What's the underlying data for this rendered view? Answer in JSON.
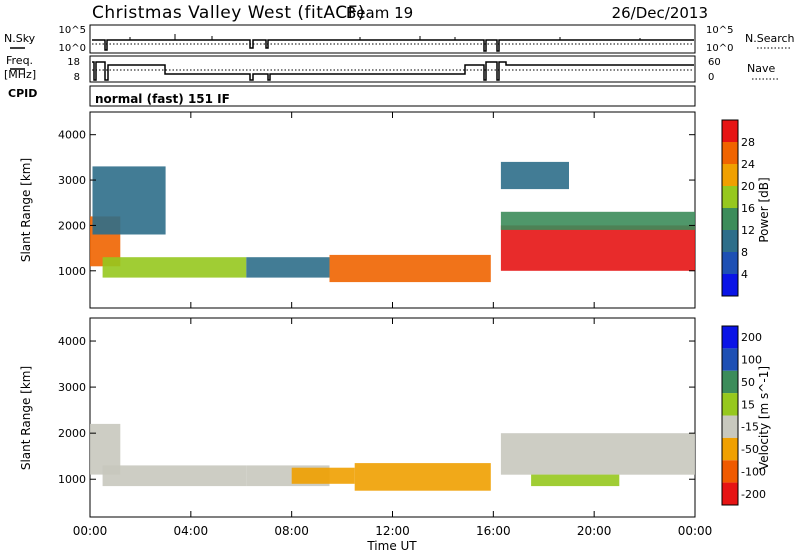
{
  "header": {
    "title": "Christmas Valley West (fitACF)",
    "beam": "Beam 19",
    "date": "26/Dec/2013"
  },
  "noise_panel": {
    "left_label": "N.Sky",
    "right_label": "N.Search",
    "left_ticks": [
      "10^5",
      "10^0"
    ],
    "right_ticks": [
      "10^5",
      "10^0"
    ]
  },
  "freq_panel": {
    "left_label_line1": "Freq.",
    "left_label_line2": "[MHz]",
    "right_label": "Nave",
    "left_ticks": [
      "18",
      "8"
    ],
    "right_ticks": [
      "60",
      "0"
    ]
  },
  "cpid": {
    "label": "CPID",
    "value": "normal (fast) 151 IF"
  },
  "x_axis": {
    "label": "Time UT",
    "ticks": [
      "00:00",
      "04:00",
      "08:00",
      "12:00",
      "16:00",
      "20:00",
      "00:00"
    ]
  },
  "colors": {
    "power": [
      "#0a14e6",
      "#1e50b4",
      "#2e6e8a",
      "#3c8c5a",
      "#96c81e",
      "#f0a000",
      "#f06400",
      "#e61414"
    ],
    "velocity": [
      "#e61414",
      "#f05a00",
      "#f0a000",
      "#c8c8be",
      "#96c81e",
      "#3c8c5a",
      "#1e50b4",
      "#0a14e6"
    ]
  },
  "chart_data": [
    {
      "type": "heatmap",
      "title": "",
      "ylabel": "Slant Range [km]",
      "xlabel": "",
      "xlim": [
        "00:00",
        "24:00"
      ],
      "ylim": [
        180,
        4500
      ],
      "yticks": [
        "1000",
        "2000",
        "3000",
        "4000"
      ],
      "colorbar": {
        "label": "Power [dB]",
        "ticks": [
          "4",
          "8",
          "12",
          "16",
          "20",
          "24",
          "28"
        ]
      },
      "regions": [
        {
          "t0": 0.0,
          "t1": 1.2,
          "r0": 1100,
          "r1": 2200,
          "level": 0.85
        },
        {
          "t0": 0.1,
          "t1": 3.0,
          "r0": 1800,
          "r1": 3300,
          "level": 0.3
        },
        {
          "t0": 0.5,
          "t1": 6.2,
          "r0": 850,
          "r1": 1300,
          "level": 0.5
        },
        {
          "t0": 6.2,
          "t1": 9.5,
          "r0": 850,
          "r1": 1300,
          "level": 0.3
        },
        {
          "t0": 9.5,
          "t1": 15.9,
          "r0": 750,
          "r1": 1350,
          "level": 0.75
        },
        {
          "t0": 16.3,
          "t1": 24.0,
          "r0": 1000,
          "r1": 2000,
          "level": 0.9
        },
        {
          "t0": 16.3,
          "t1": 24.0,
          "r0": 1900,
          "r1": 2300,
          "level": 0.4
        },
        {
          "t0": 16.3,
          "t1": 19.0,
          "r0": 2800,
          "r1": 3400,
          "level": 0.35
        }
      ]
    },
    {
      "type": "heatmap",
      "title": "",
      "ylabel": "Slant Range [km]",
      "xlabel": "Time UT",
      "xlim": [
        "00:00",
        "24:00"
      ],
      "ylim": [
        180,
        4500
      ],
      "yticks": [
        "1000",
        "2000",
        "3000",
        "4000"
      ],
      "colorbar": {
        "label": "Velocity [m s^-1]",
        "ticks": [
          "200",
          "100",
          "50",
          "15",
          "-15",
          "-50",
          "-100",
          "-200"
        ]
      },
      "regions": [
        {
          "t0": 0.0,
          "t1": 1.2,
          "r0": 1100,
          "r1": 2200,
          "cls": 3
        },
        {
          "t0": 0.5,
          "t1": 6.2,
          "r0": 850,
          "r1": 1300,
          "cls": 3
        },
        {
          "t0": 6.2,
          "t1": 9.5,
          "r0": 850,
          "r1": 1300,
          "cls": 3
        },
        {
          "t0": 8.0,
          "t1": 10.5,
          "r0": 900,
          "r1": 1250,
          "cls": 2
        },
        {
          "t0": 10.5,
          "t1": 15.9,
          "r0": 750,
          "r1": 1350,
          "cls": 2
        },
        {
          "t0": 16.3,
          "t1": 24.0,
          "r0": 1100,
          "r1": 2000,
          "cls": 3
        },
        {
          "t0": 17.5,
          "t1": 21.0,
          "r0": 850,
          "r1": 1100,
          "cls": 4
        }
      ]
    }
  ]
}
